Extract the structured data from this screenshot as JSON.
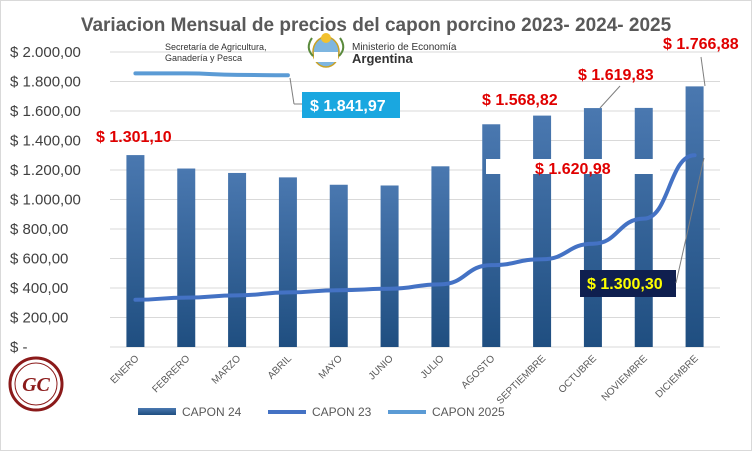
{
  "logos": {
    "secretaria_line1": "Secretaría de Agricultura,",
    "secretaria_line2": "Ganadería y Pesca",
    "ministerio_line1": "Ministerio de Economía",
    "ministerio_line2": "Argentina",
    "gc_mark": "GC"
  },
  "chart_data": {
    "type": "bar",
    "title": "Variacion Mensual de precios del capon porcino 2023- 2024- 2025",
    "categories": [
      "ENERO",
      "FEBRERO",
      "MARZO",
      "ABRIL",
      "MAYO",
      "JUNIO",
      "JULIO",
      "AGOSTO",
      "SEPTIEMBRE",
      "OCTUBRE",
      "NOVIEMBRE",
      "DICIEMBRE"
    ],
    "ylim": [
      0,
      2000
    ],
    "yticks": [
      0,
      200,
      400,
      600,
      800,
      1000,
      1200,
      1400,
      1600,
      1800,
      2000
    ],
    "ytick_labels": [
      "$ -",
      "$ 200,00",
      "$ 400,00",
      "$ 600,00",
      "$ 800,00",
      "$ 1.000,00",
      "$ 1.200,00",
      "$ 1.400,00",
      "$ 1.600,00",
      "$ 1.800,00",
      "$ 2.000,00"
    ],
    "grid": true,
    "legend_position": "bottom",
    "series": [
      {
        "name": "CAPON 24",
        "kind": "bar",
        "color": "#2f5f96",
        "values": [
          1301.1,
          1210,
          1180,
          1150,
          1100,
          1095,
          1225,
          1510,
          1568.82,
          1619.83,
          1620.98,
          1766.88
        ]
      },
      {
        "name": "CAPON 23",
        "kind": "line",
        "color": "#4472c4",
        "values": [
          320,
          335,
          350,
          370,
          385,
          395,
          425,
          555,
          595,
          700,
          870,
          1300.3
        ]
      },
      {
        "name": "CAPON 2025",
        "kind": "line",
        "color": "#5b9bd5",
        "values": [
          1855,
          1855,
          1845,
          1841.97,
          null,
          null,
          null,
          null,
          null,
          null,
          null,
          null
        ]
      }
    ],
    "annotations": [
      {
        "text": "$ 1.301,10",
        "style": "red"
      },
      {
        "text": "$ 1.568,82",
        "style": "red"
      },
      {
        "text": "$ 1.619,83",
        "style": "red"
      },
      {
        "text": "$ 1.766,88",
        "style": "red"
      },
      {
        "text": "$ 1.620,98",
        "style": "red-on-white"
      },
      {
        "text": "$ 1.841,97",
        "style": "white-on-cyan"
      },
      {
        "text": "$ 1.300,30",
        "style": "yellow-on-navy"
      }
    ]
  }
}
